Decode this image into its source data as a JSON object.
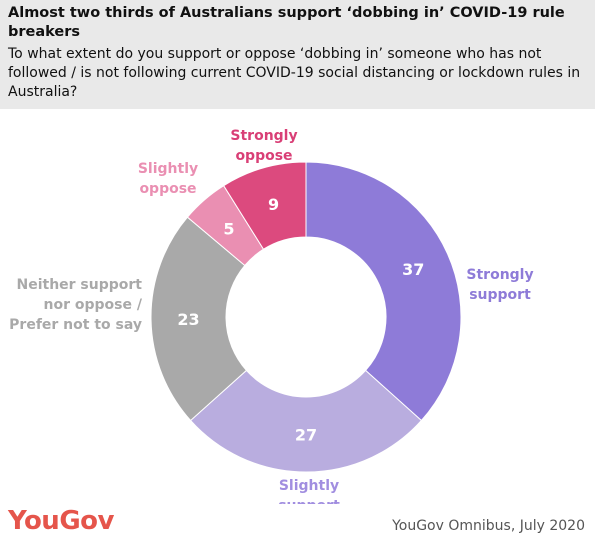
{
  "header": {
    "title": "Almost two thirds of Australians support ‘dobbing in’ COVID-19 rule breakers",
    "subtitle": "To what extent do you support or oppose ‘dobbing in’ someone who has not followed / is not following current COVID-19 social distancing or lockdown rules in Australia?"
  },
  "footer": {
    "logo": "YouGov",
    "source": "YouGov Omnibus, July 2020"
  },
  "chart_data": {
    "type": "pie",
    "donut": true,
    "slices": [
      {
        "name": "Strongly support",
        "value": 37,
        "color": "#8e7bd8",
        "label_color": "#8e7bd8"
      },
      {
        "name": "Slightly support",
        "value": 27,
        "color": "#b9addf",
        "label_color": "#a18ee0"
      },
      {
        "name": "Neither support nor oppose / Prefer not to say",
        "value": 23,
        "color": "#a9a9a9",
        "label_color": "#a9a9a9"
      },
      {
        "name": "Slightly oppose",
        "value": 5,
        "color": "#ea8fb2",
        "label_color": "#ea8fb2"
      },
      {
        "name": "Strongly oppose",
        "value": 9,
        "color": "#dc4a7e",
        "label_color": "#d93f76"
      }
    ]
  }
}
